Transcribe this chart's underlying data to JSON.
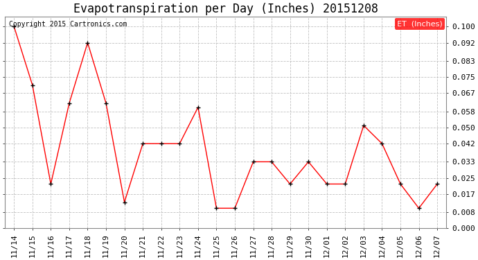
{
  "title": "Evapotranspiration per Day (Inches) 20151208",
  "copyright_text": "Copyright 2015 Cartronics.com",
  "legend_label": "ET  (Inches)",
  "legend_bg": "#ff0000",
  "legend_text_color": "#ffffff",
  "x_labels": [
    "11/14",
    "11/15",
    "11/16",
    "11/17",
    "11/18",
    "11/19",
    "11/20",
    "11/21",
    "11/22",
    "11/23",
    "11/24",
    "11/25",
    "11/26",
    "11/27",
    "11/28",
    "11/29",
    "11/30",
    "12/01",
    "12/02",
    "12/03",
    "12/04",
    "12/05",
    "12/06",
    "12/07"
  ],
  "y_values": [
    0.1,
    0.071,
    0.022,
    0.062,
    0.092,
    0.062,
    0.013,
    0.042,
    0.042,
    0.042,
    0.06,
    0.01,
    0.01,
    0.033,
    0.033,
    0.022,
    0.033,
    0.022,
    0.022,
    0.051,
    0.042,
    0.022,
    0.01,
    0.022
  ],
  "line_color": "#ff0000",
  "marker_color": "#000000",
  "bg_color": "#ffffff",
  "grid_color": "#c0c0c0",
  "ylim": [
    0.0,
    0.105
  ],
  "yticks": [
    0.0,
    0.008,
    0.017,
    0.025,
    0.033,
    0.042,
    0.05,
    0.058,
    0.067,
    0.075,
    0.083,
    0.092,
    0.1
  ],
  "title_fontsize": 12,
  "tick_fontsize": 8,
  "copyright_fontsize": 7,
  "legend_fontsize": 8
}
